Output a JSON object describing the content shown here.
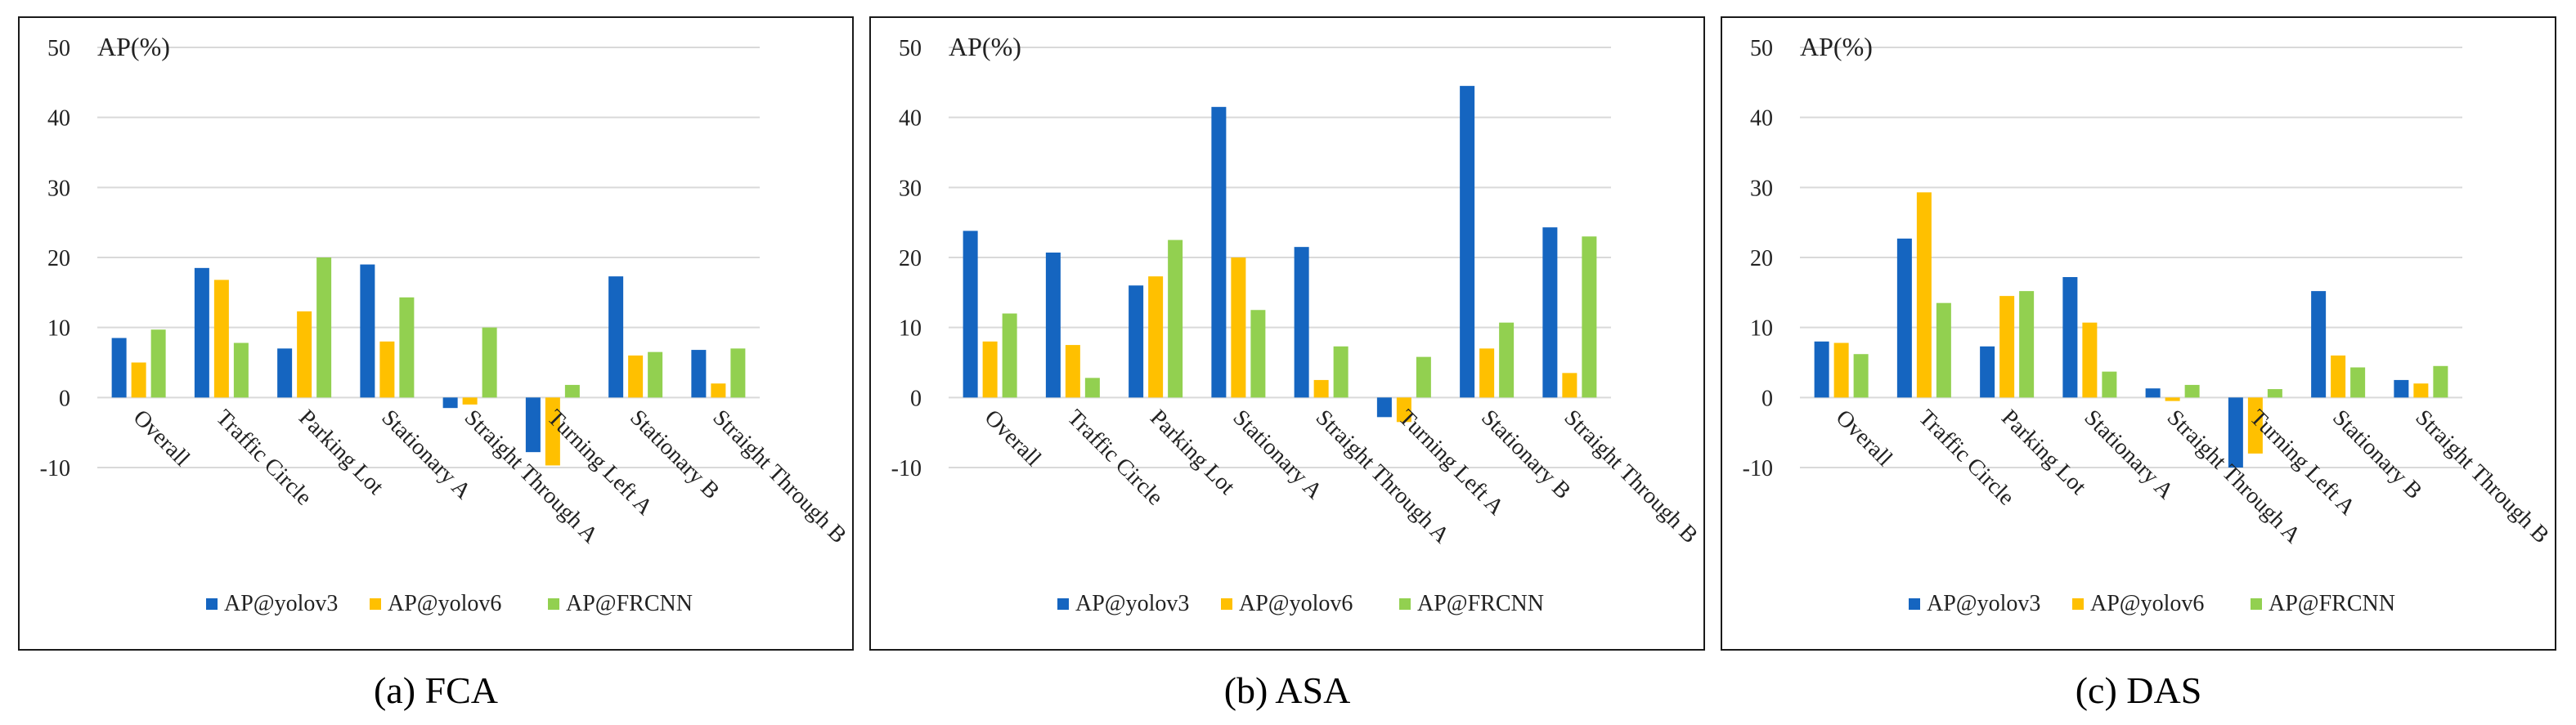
{
  "colors": {
    "AP@yolov3": "#1565c0",
    "AP@yolov6": "#ffc000",
    "AP@FRCNN": "#92d050"
  },
  "chart_data": [
    {
      "type": "bar",
      "title": "(a) FCA",
      "ylabel": "AP(%)",
      "ylim": [
        -10,
        50
      ],
      "yticks": [
        50,
        40,
        30,
        20,
        10,
        0,
        -10
      ],
      "grid": true,
      "legend": "bottom",
      "categories": [
        "Overall",
        "Traffic Circle",
        "Parking Lot",
        "Stationary A",
        "Straight Through A",
        "Turning Left A",
        "Stationary B",
        "Straight Through B"
      ],
      "series": [
        {
          "name": "AP@yolov3",
          "values": [
            8.5,
            18.5,
            7.0,
            19.0,
            -1.5,
            -7.8,
            17.3,
            6.8
          ]
        },
        {
          "name": "AP@yolov6",
          "values": [
            5.0,
            16.8,
            12.3,
            8.0,
            -1.0,
            -9.7,
            6.0,
            2.0
          ]
        },
        {
          "name": "AP@FRCNN",
          "values": [
            9.7,
            7.8,
            20.0,
            14.3,
            10.0,
            1.8,
            6.5,
            7.0
          ]
        }
      ]
    },
    {
      "type": "bar",
      "title": "(b) ASA",
      "ylabel": "AP(%)",
      "ylim": [
        -10,
        50
      ],
      "yticks": [
        50,
        40,
        30,
        20,
        10,
        0,
        -10
      ],
      "grid": true,
      "legend": "bottom",
      "categories": [
        "Overall",
        "Traffic Circle",
        "Parking Lot",
        "Stationary A",
        "Straight Through A",
        "Turning Left A",
        "Stationary B",
        "Straight Through B"
      ],
      "series": [
        {
          "name": "AP@yolov3",
          "values": [
            23.8,
            20.7,
            16.0,
            41.5,
            21.5,
            -2.8,
            44.5,
            24.3
          ]
        },
        {
          "name": "AP@yolov6",
          "values": [
            8.0,
            7.5,
            17.3,
            20.0,
            2.5,
            -3.5,
            7.0,
            3.5
          ]
        },
        {
          "name": "AP@FRCNN",
          "values": [
            12.0,
            2.8,
            22.5,
            12.5,
            7.3,
            5.8,
            10.7,
            23.0
          ]
        }
      ]
    },
    {
      "type": "bar",
      "title": "(c) DAS",
      "ylabel": "AP(%)",
      "ylim": [
        -10,
        50
      ],
      "yticks": [
        50,
        40,
        30,
        20,
        10,
        0,
        -10
      ],
      "grid": true,
      "legend": "bottom",
      "categories": [
        "Overall",
        "Traffic Circle",
        "Parking Lot",
        "Stationary A",
        "Straight Through A",
        "Turning Left A",
        "Stationary B",
        "Straight Through B"
      ],
      "series": [
        {
          "name": "AP@yolov3",
          "values": [
            8.0,
            22.7,
            7.3,
            17.2,
            1.3,
            -10.0,
            15.2,
            2.5
          ]
        },
        {
          "name": "AP@yolov6",
          "values": [
            7.8,
            29.3,
            14.5,
            10.7,
            -0.5,
            -8.0,
            6.0,
            2.0
          ]
        },
        {
          "name": "AP@FRCNN",
          "values": [
            6.2,
            13.5,
            15.2,
            3.7,
            1.8,
            1.2,
            4.3,
            4.5
          ]
        }
      ]
    }
  ]
}
